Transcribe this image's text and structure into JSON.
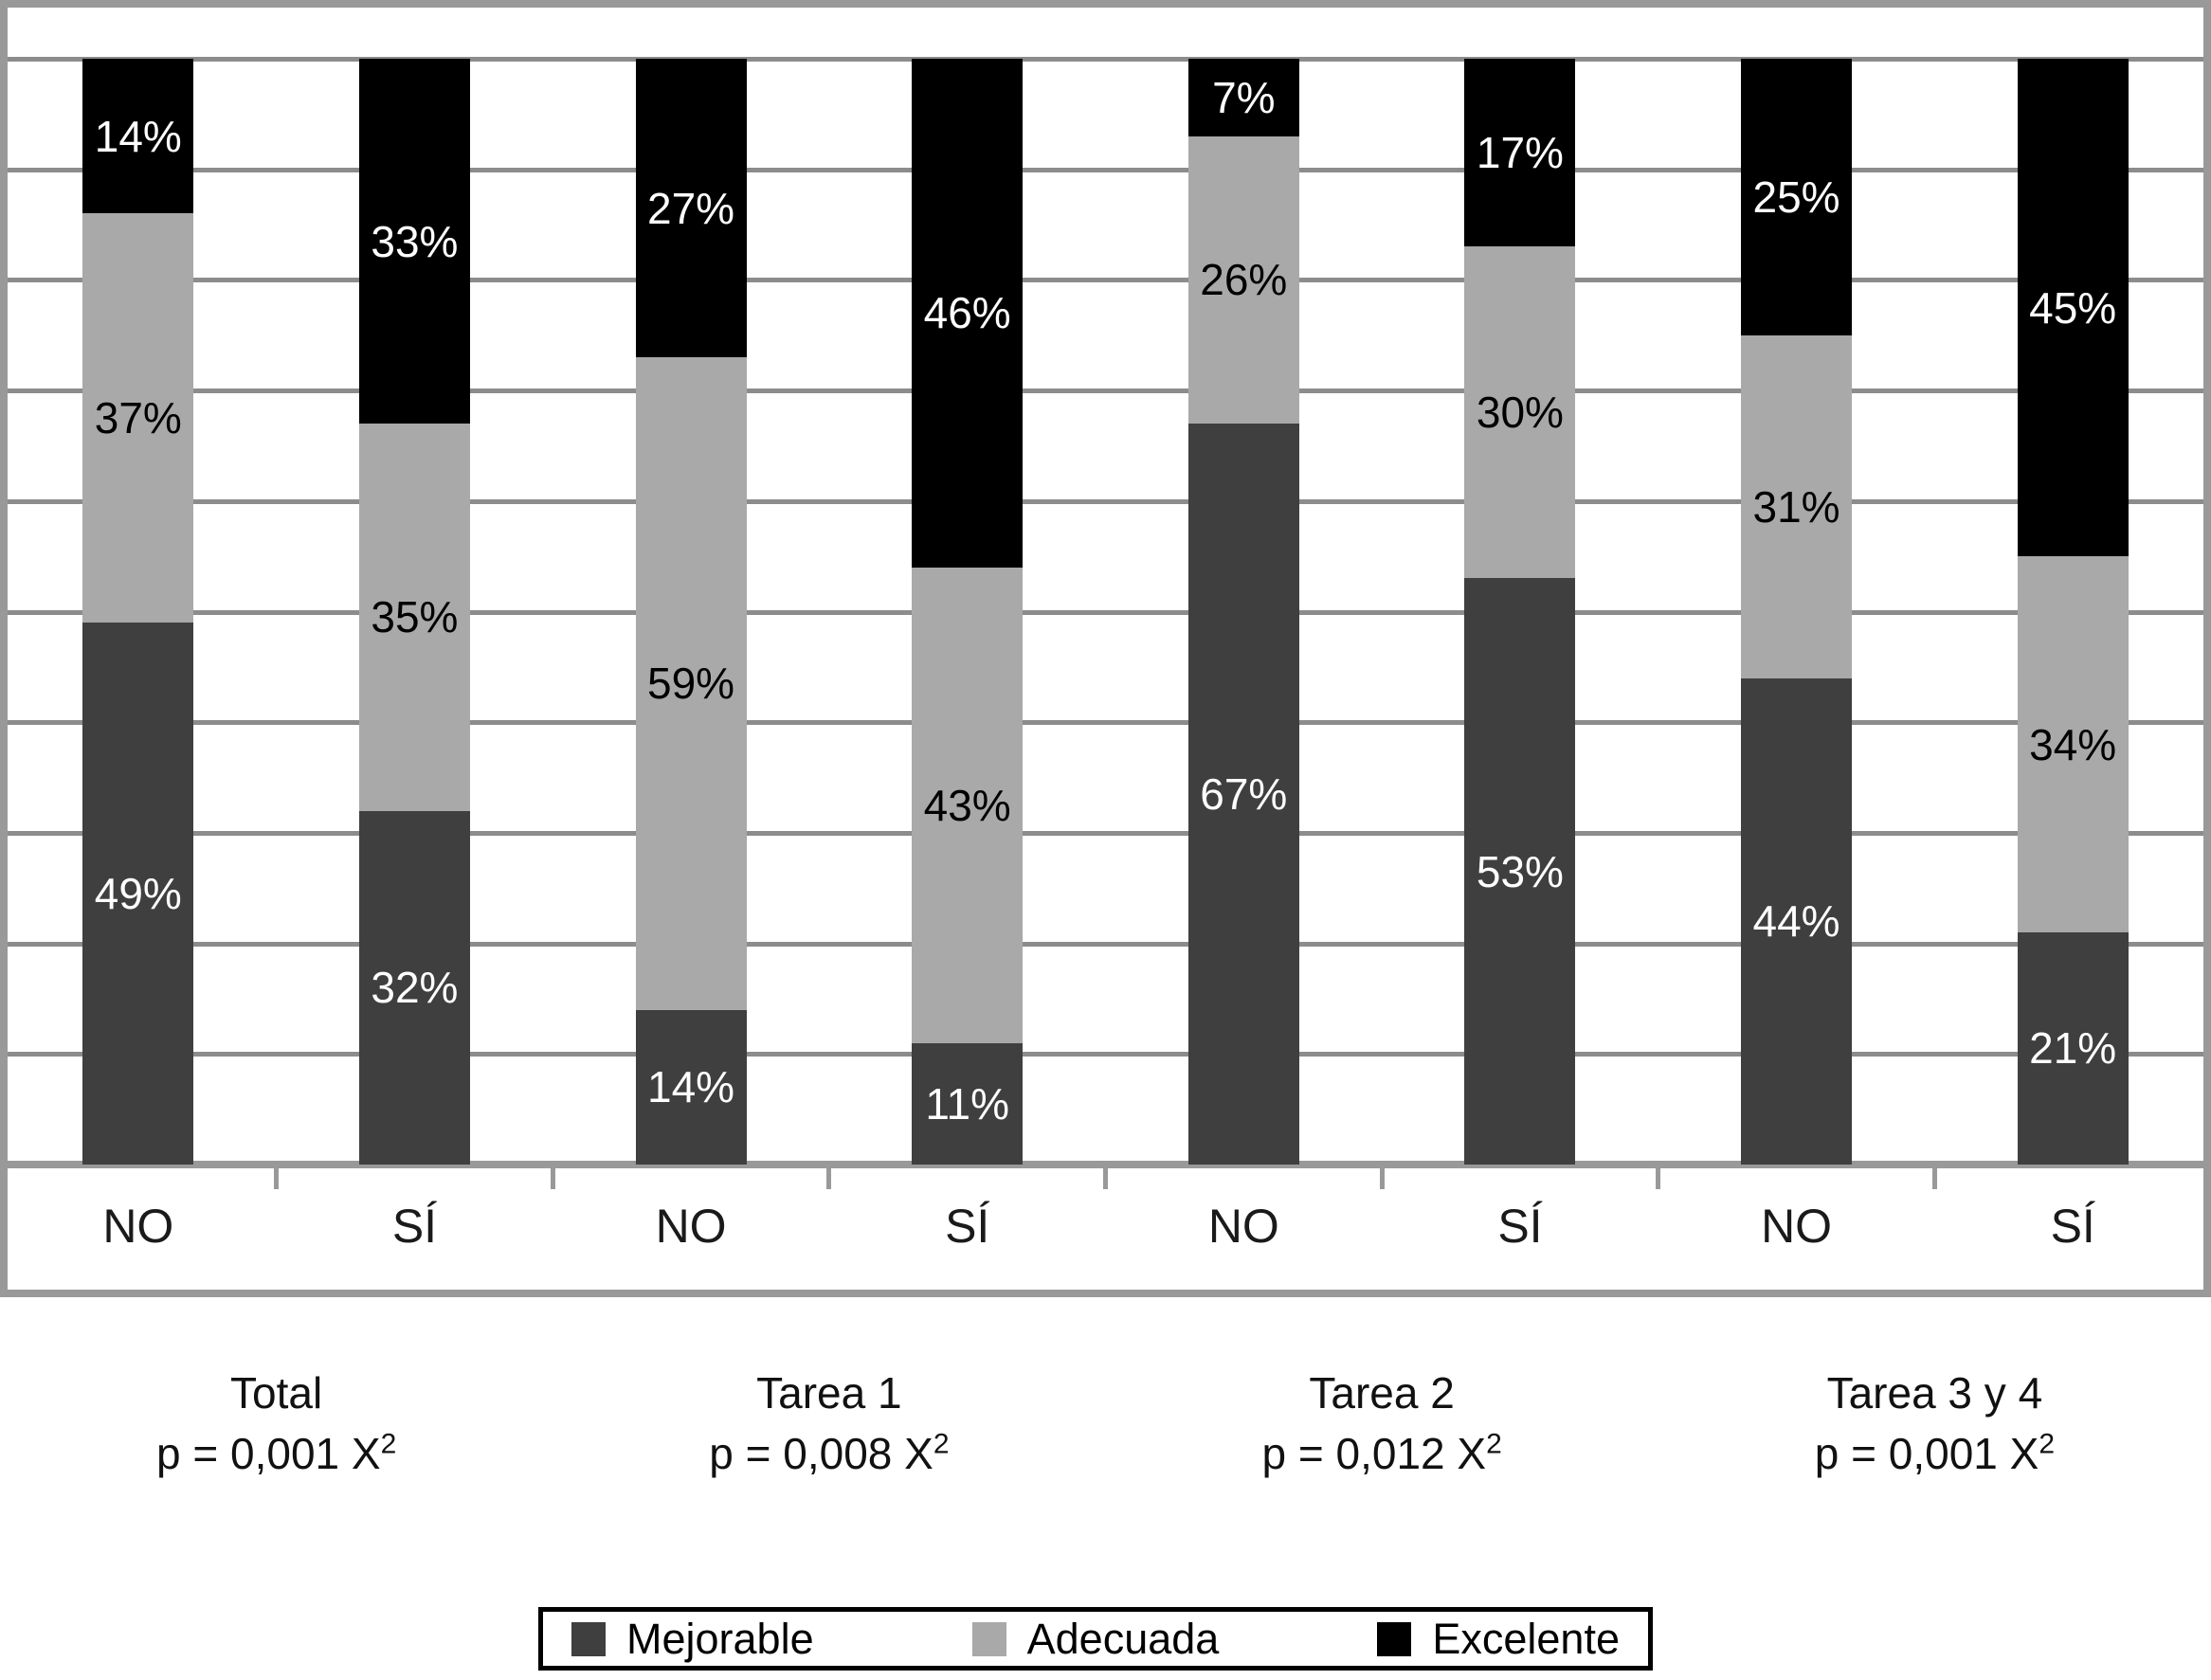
{
  "chart_data": {
    "type": "bar",
    "stacked": true,
    "orientation": "vertical",
    "value_unit": "%",
    "ylim": [
      0,
      100
    ],
    "grid": {
      "horizontal": true,
      "step_pct": 10,
      "vertical": false
    },
    "legend_position": "bottom",
    "data_labels": "percent-inside-segment",
    "series_order_bottom_to_top": [
      "Mejorable",
      "Adecuada",
      "Excelente"
    ],
    "series_colors": {
      "Mejorable": "#3f3f3f",
      "Adecuada": "#a9a9a9",
      "Excelente": "#000000"
    },
    "label_text_colors": {
      "Mejorable": "#ffffff",
      "Adecuada": "#000000",
      "Excelente": "#ffffff"
    },
    "groups": [
      {
        "name": "Total",
        "p_label": {
          "text": "p = 0,001 X",
          "exponent": "2"
        },
        "bars": [
          {
            "category": "NO",
            "values": {
              "Mejorable": 49,
              "Adecuada": 37,
              "Excelente": 14
            }
          },
          {
            "category": "SÍ",
            "values": {
              "Mejorable": 32,
              "Adecuada": 35,
              "Excelente": 33
            }
          }
        ]
      },
      {
        "name": "Tarea 1",
        "p_label": {
          "text": "p = 0,008 X",
          "exponent": "2"
        },
        "bars": [
          {
            "category": "NO",
            "values": {
              "Mejorable": 14,
              "Adecuada": 59,
              "Excelente": 27
            }
          },
          {
            "category": "SÍ",
            "values": {
              "Mejorable": 11,
              "Adecuada": 43,
              "Excelente": 46
            }
          }
        ]
      },
      {
        "name": "Tarea 2",
        "p_label": {
          "text": "p = 0,012 X",
          "exponent": "2"
        },
        "bars": [
          {
            "category": "NO",
            "values": {
              "Mejorable": 67,
              "Adecuada": 26,
              "Excelente": 7
            }
          },
          {
            "category": "SÍ",
            "values": {
              "Mejorable": 53,
              "Adecuada": 30,
              "Excelente": 17
            }
          }
        ]
      },
      {
        "name": "Tarea 3 y 4",
        "p_label": {
          "text": "p = 0,001 X",
          "exponent": "2"
        },
        "bars": [
          {
            "category": "NO",
            "values": {
              "Mejorable": 44,
              "Adecuada": 31,
              "Excelente": 25
            }
          },
          {
            "category": "SÍ",
            "values": {
              "Mejorable": 21,
              "Adecuada": 34,
              "Excelente": 45
            }
          }
        ]
      }
    ],
    "legend": [
      "Mejorable",
      "Adecuada",
      "Excelente"
    ]
  },
  "colors": {
    "background": "#ffffff",
    "grid": "#8c8c8c",
    "frame": "#999999",
    "legend_border": "#000000"
  }
}
